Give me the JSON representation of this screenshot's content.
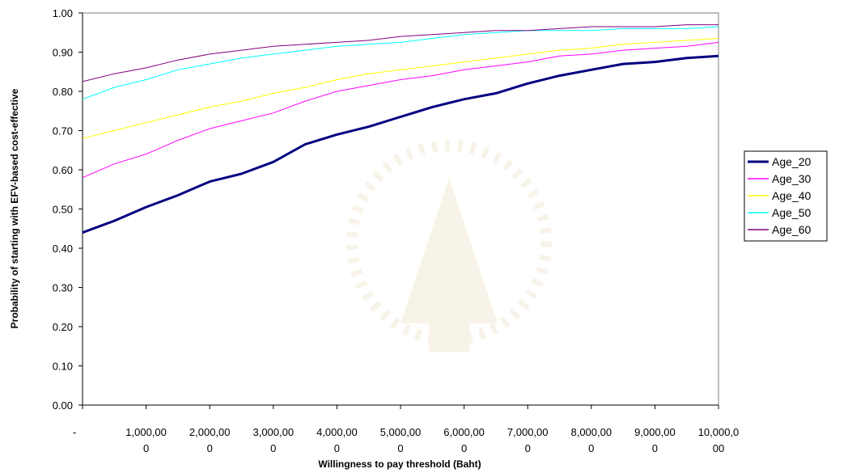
{
  "chart_data": {
    "type": "line",
    "xlabel": "Willingness to pay threshold (Baht)",
    "ylabel": "Probability of starting with EFV-based cost-effective",
    "xlim": [
      0,
      10000
    ],
    "ylim": [
      0,
      1
    ],
    "grid": false,
    "legend_position": "right",
    "x_tick_labels": [
      [
        "-"
      ],
      [
        "1,000,00",
        "0"
      ],
      [
        "2,000,00",
        "0"
      ],
      [
        "3,000,00",
        "0"
      ],
      [
        "4,000,00",
        "0"
      ],
      [
        "5,000,00",
        "0"
      ],
      [
        "6,000,00",
        "0"
      ],
      [
        "7,000,00",
        "0"
      ],
      [
        "8,000,00",
        "0"
      ],
      [
        "9,000,00",
        "0"
      ],
      [
        "10,000,0",
        "00"
      ]
    ],
    "x_tick_values": [
      0,
      1000,
      2000,
      3000,
      4000,
      5000,
      6000,
      7000,
      8000,
      9000,
      10000
    ],
    "y_tick_labels": [
      "0.00",
      "0.10",
      "0.20",
      "0.30",
      "0.40",
      "0.50",
      "0.60",
      "0.70",
      "0.80",
      "0.90",
      "1.00"
    ],
    "y_tick_values": [
      0,
      0.1,
      0.2,
      0.3,
      0.4,
      0.5,
      0.6,
      0.7,
      0.8,
      0.9,
      1.0
    ],
    "x": [
      0,
      500,
      1000,
      1500,
      2000,
      2500,
      3000,
      3500,
      4000,
      4500,
      5000,
      5500,
      6000,
      6500,
      7000,
      7500,
      8000,
      8500,
      9000,
      9500,
      10000
    ],
    "series": [
      {
        "name": "Age_20",
        "color": "#000080",
        "width": 3,
        "values": [
          0.44,
          0.47,
          0.505,
          0.535,
          0.57,
          0.59,
          0.62,
          0.665,
          0.69,
          0.71,
          0.735,
          0.76,
          0.78,
          0.795,
          0.82,
          0.84,
          0.855,
          0.87,
          0.875,
          0.885,
          0.89
        ]
      },
      {
        "name": "Age_30",
        "color": "#ff00ff",
        "width": 1,
        "values": [
          0.58,
          0.615,
          0.64,
          0.675,
          0.705,
          0.725,
          0.745,
          0.775,
          0.8,
          0.815,
          0.83,
          0.84,
          0.855,
          0.865,
          0.875,
          0.89,
          0.895,
          0.905,
          0.91,
          0.915,
          0.925
        ]
      },
      {
        "name": "Age_40",
        "color": "#ffff00",
        "width": 1,
        "values": [
          0.68,
          0.7,
          0.72,
          0.74,
          0.76,
          0.775,
          0.795,
          0.81,
          0.83,
          0.845,
          0.855,
          0.865,
          0.875,
          0.885,
          0.895,
          0.905,
          0.91,
          0.92,
          0.925,
          0.93,
          0.935
        ]
      },
      {
        "name": "Age_50",
        "color": "#00ffff",
        "width": 1,
        "values": [
          0.78,
          0.81,
          0.83,
          0.855,
          0.87,
          0.885,
          0.895,
          0.905,
          0.915,
          0.92,
          0.925,
          0.935,
          0.945,
          0.95,
          0.955,
          0.955,
          0.955,
          0.96,
          0.96,
          0.96,
          0.965
        ]
      },
      {
        "name": "Age_60",
        "color": "#800080",
        "width": 1,
        "values": [
          0.825,
          0.845,
          0.86,
          0.88,
          0.895,
          0.905,
          0.915,
          0.92,
          0.925,
          0.93,
          0.94,
          0.945,
          0.95,
          0.955,
          0.955,
          0.96,
          0.965,
          0.965,
          0.965,
          0.97,
          0.97
        ]
      }
    ]
  }
}
